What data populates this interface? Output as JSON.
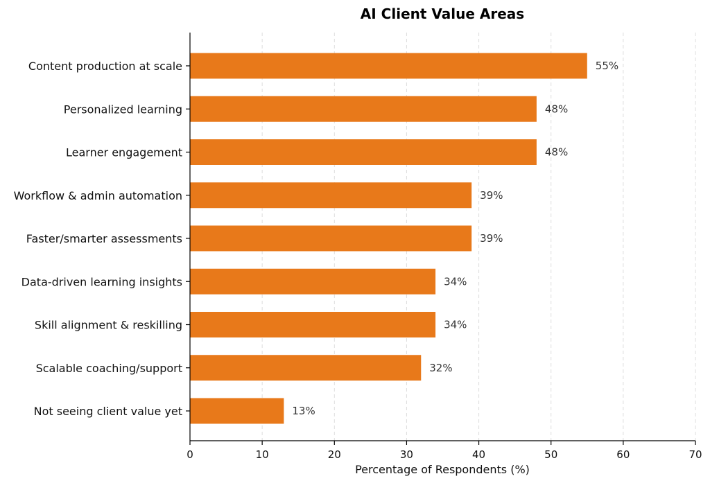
{
  "chart_data": {
    "type": "bar",
    "orientation": "horizontal",
    "title": "AI Client Value Areas",
    "xlabel": "Percentage of Respondents (%)",
    "ylabel": "",
    "xlim": [
      0,
      70
    ],
    "xticks": [
      0,
      10,
      20,
      30,
      40,
      50,
      60,
      70
    ],
    "grid": "vertical-dashed",
    "bar_color": "#E8791A",
    "categories": [
      "Content production at scale",
      "Personalized learning",
      "Learner engagement",
      "Workflow & admin automation",
      "Faster/smarter assessments",
      "Data-driven learning insights",
      "Skill alignment & reskilling",
      "Scalable coaching/support",
      "Not seeing client value yet"
    ],
    "values": [
      55,
      48,
      48,
      39,
      39,
      34,
      34,
      32,
      13
    ],
    "value_suffix": "%"
  }
}
